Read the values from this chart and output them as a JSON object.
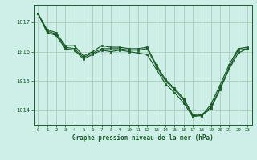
{
  "title": "Graphe pression niveau de la mer (hPa)",
  "background_color": "#ceeee8",
  "grid_color": "#aaccbb",
  "line_color": "#1a5c28",
  "xlim": [
    -0.5,
    23.5
  ],
  "ylim": [
    1013.5,
    1017.6
  ],
  "yticks": [
    1014,
    1015,
    1016,
    1017
  ],
  "xticks": [
    0,
    1,
    2,
    3,
    4,
    5,
    6,
    7,
    8,
    9,
    10,
    11,
    12,
    13,
    14,
    15,
    16,
    17,
    18,
    19,
    20,
    21,
    22,
    23
  ],
  "series1": {
    "x": [
      0,
      1,
      2,
      3,
      4,
      5,
      6,
      7,
      8,
      9,
      10,
      11,
      12,
      13,
      14,
      15,
      16,
      17,
      18,
      19,
      20,
      21,
      22,
      23
    ],
    "y": [
      1017.3,
      1016.75,
      1016.65,
      1016.2,
      1016.2,
      1015.85,
      1016.0,
      1016.2,
      1016.15,
      1016.15,
      1016.1,
      1016.1,
      1016.15,
      1015.55,
      1015.05,
      1014.75,
      1014.4,
      1013.85,
      1013.8,
      1014.2,
      1014.85,
      1015.55,
      1016.1,
      1016.15
    ]
  },
  "series2": {
    "x": [
      0,
      1,
      2,
      3,
      4,
      5,
      6,
      7,
      8,
      9,
      10,
      11,
      12,
      13,
      14,
      15,
      16,
      17,
      18,
      19,
      20,
      21,
      22,
      23
    ],
    "y": [
      1017.3,
      1016.7,
      1016.6,
      1016.15,
      1016.1,
      1015.8,
      1015.95,
      1016.1,
      1016.1,
      1016.1,
      1016.05,
      1016.05,
      1016.1,
      1015.5,
      1015.0,
      1014.7,
      1014.35,
      1013.8,
      1013.85,
      1014.1,
      1014.75,
      1015.45,
      1016.05,
      1016.1
    ]
  },
  "series3": {
    "x": [
      0,
      1,
      2,
      3,
      4,
      5,
      6,
      7,
      8,
      9,
      10,
      11,
      12,
      13,
      14,
      15,
      16,
      17,
      18,
      19,
      20,
      21,
      22,
      23
    ],
    "y": [
      1017.3,
      1016.65,
      1016.55,
      1016.1,
      1016.05,
      1015.75,
      1015.9,
      1016.05,
      1016.0,
      1016.05,
      1016.0,
      1015.95,
      1015.9,
      1015.4,
      1014.9,
      1014.6,
      1014.25,
      1013.78,
      1013.82,
      1014.05,
      1014.7,
      1015.4,
      1015.95,
      1016.1
    ]
  }
}
